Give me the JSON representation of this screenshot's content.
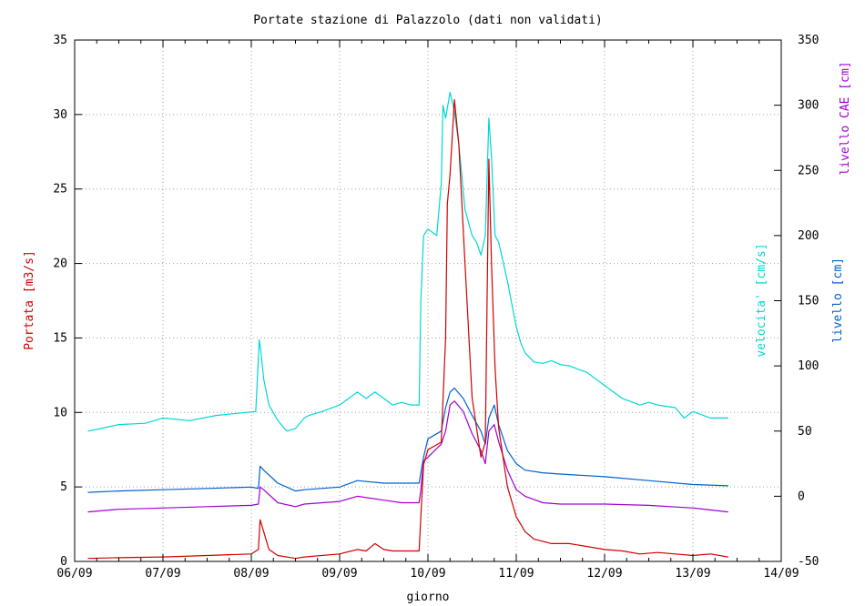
{
  "chart_data": {
    "type": "line",
    "title": "Portate stazione di Palazzolo (dati non validati)",
    "xlabel": "giorno",
    "x_ticks": [
      "06/09",
      "07/09",
      "08/09",
      "09/09",
      "10/09",
      "11/09",
      "12/09",
      "13/09",
      "14/09"
    ],
    "xlim": [
      0,
      8
    ],
    "y_left": {
      "label": "Portata [m3/s]",
      "range": [
        0,
        35
      ],
      "ticks": [
        0,
        5,
        10,
        15,
        20,
        25,
        30,
        35
      ]
    },
    "y_right": {
      "labels": [
        "velocita' [cm/s]",
        "livello [cm]",
        "livello CAE [cm]"
      ],
      "range": [
        -50,
        350
      ],
      "ticks": [
        -50,
        0,
        50,
        100,
        150,
        200,
        250,
        300,
        350
      ]
    },
    "grid": true,
    "colors": {
      "portata": "#d00000",
      "velocita": "#00d6d6",
      "livello": "#0060d0",
      "livello_cae": "#a000d0"
    },
    "series": [
      {
        "name": "velocita' [cm/s]",
        "axis": "right",
        "color": "#00d6d6",
        "x": [
          0.15,
          0.3,
          0.5,
          0.8,
          1.0,
          1.3,
          1.6,
          1.9,
          2.05,
          2.09,
          2.11,
          2.14,
          2.2,
          2.3,
          2.4,
          2.5,
          2.6,
          2.65,
          2.8,
          3.0,
          3.2,
          3.3,
          3.4,
          3.5,
          3.6,
          3.7,
          3.8,
          3.9,
          3.92,
          3.95,
          4.0,
          4.1,
          4.15,
          4.17,
          4.2,
          4.25,
          4.3,
          4.35,
          4.42,
          4.5,
          4.55,
          4.6,
          4.65,
          4.69,
          4.72,
          4.76,
          4.8,
          4.9,
          5.0,
          5.05,
          5.1,
          5.2,
          5.3,
          5.4,
          5.5,
          5.6,
          5.8,
          6.0,
          6.2,
          6.4,
          6.5,
          6.6,
          6.8,
          6.9,
          7.0,
          7.2,
          7.4
        ],
        "y": [
          50,
          52,
          55,
          56,
          60,
          58,
          62,
          64,
          65,
          120,
          110,
          90,
          70,
          58,
          50,
          52,
          60,
          62,
          65,
          70,
          80,
          75,
          80,
          75,
          70,
          72,
          70,
          70,
          150,
          200,
          205,
          200,
          240,
          300,
          290,
          310,
          295,
          270,
          220,
          200,
          195,
          185,
          200,
          290,
          260,
          200,
          195,
          165,
          130,
          118,
          110,
          103,
          102,
          104,
          101,
          100,
          95,
          85,
          75,
          70,
          72,
          70,
          68,
          60,
          65,
          60,
          60
        ]
      },
      {
        "name": "livello [cm]",
        "axis": "right",
        "color": "#0060d0",
        "x": [
          0.15,
          0.5,
          1.0,
          1.5,
          2.0,
          2.08,
          2.1,
          2.14,
          2.3,
          2.5,
          2.6,
          3.0,
          3.2,
          3.5,
          3.7,
          3.9,
          3.92,
          3.95,
          4.0,
          4.15,
          4.2,
          4.25,
          4.3,
          4.4,
          4.5,
          4.6,
          4.65,
          4.69,
          4.75,
          4.8,
          4.9,
          5.0,
          5.1,
          5.3,
          5.5,
          6.0,
          6.5,
          7.0,
          7.4
        ],
        "y": [
          3,
          4,
          5,
          6,
          7,
          6,
          23,
          20,
          10,
          4,
          5,
          7,
          12,
          10,
          10,
          10,
          18,
          30,
          44,
          50,
          68,
          80,
          83,
          75,
          62,
          50,
          40,
          60,
          70,
          55,
          35,
          25,
          20,
          18,
          17,
          15,
          12,
          9,
          8
        ]
      },
      {
        "name": "livello CAE [cm]",
        "axis": "right",
        "color": "#a000d0",
        "x": [
          0.15,
          0.5,
          1.0,
          1.5,
          2.0,
          2.08,
          2.1,
          2.14,
          2.3,
          2.5,
          2.6,
          3.0,
          3.2,
          3.5,
          3.7,
          3.9,
          3.92,
          3.95,
          4.0,
          4.15,
          4.2,
          4.25,
          4.3,
          4.4,
          4.5,
          4.6,
          4.65,
          4.69,
          4.75,
          4.8,
          4.9,
          5.0,
          5.1,
          5.3,
          5.5,
          6.0,
          6.5,
          7.0,
          7.4
        ],
        "y": [
          -12,
          -10,
          -9,
          -8,
          -7,
          -6,
          7,
          5,
          -5,
          -8,
          -6,
          -4,
          0,
          -3,
          -5,
          -5,
          5,
          27,
          30,
          40,
          50,
          70,
          73,
          65,
          48,
          35,
          25,
          50,
          55,
          42,
          20,
          5,
          0,
          -5,
          -6,
          -6,
          -7,
          -9,
          -12
        ]
      },
      {
        "name": "Portata [m3/s]",
        "axis": "left",
        "color": "#d00000",
        "x": [
          0.15,
          0.5,
          1.0,
          1.5,
          2.0,
          2.08,
          2.1,
          2.14,
          2.2,
          2.3,
          2.5,
          2.6,
          3.0,
          3.2,
          3.3,
          3.4,
          3.5,
          3.6,
          3.7,
          3.9,
          3.92,
          3.95,
          4.0,
          4.15,
          4.2,
          4.22,
          4.25,
          4.3,
          4.35,
          4.42,
          4.5,
          4.55,
          4.6,
          4.65,
          4.69,
          4.72,
          4.76,
          4.8,
          4.9,
          5.0,
          5.1,
          5.2,
          5.4,
          5.6,
          5.8,
          6.0,
          6.2,
          6.4,
          6.6,
          6.8,
          7.0,
          7.2,
          7.4
        ],
        "y": [
          0.2,
          0.25,
          0.3,
          0.4,
          0.5,
          0.8,
          2.8,
          2.0,
          0.8,
          0.4,
          0.2,
          0.3,
          0.5,
          0.8,
          0.7,
          1.2,
          0.8,
          0.7,
          0.7,
          0.7,
          3,
          6.5,
          7.5,
          8,
          15,
          24,
          26,
          31,
          28,
          20,
          11,
          9,
          7,
          8,
          27,
          20,
          13,
          9,
          5,
          3,
          2,
          1.5,
          1.2,
          1.2,
          1.0,
          0.8,
          0.7,
          0.5,
          0.6,
          0.5,
          0.4,
          0.5,
          0.3
        ]
      }
    ]
  }
}
